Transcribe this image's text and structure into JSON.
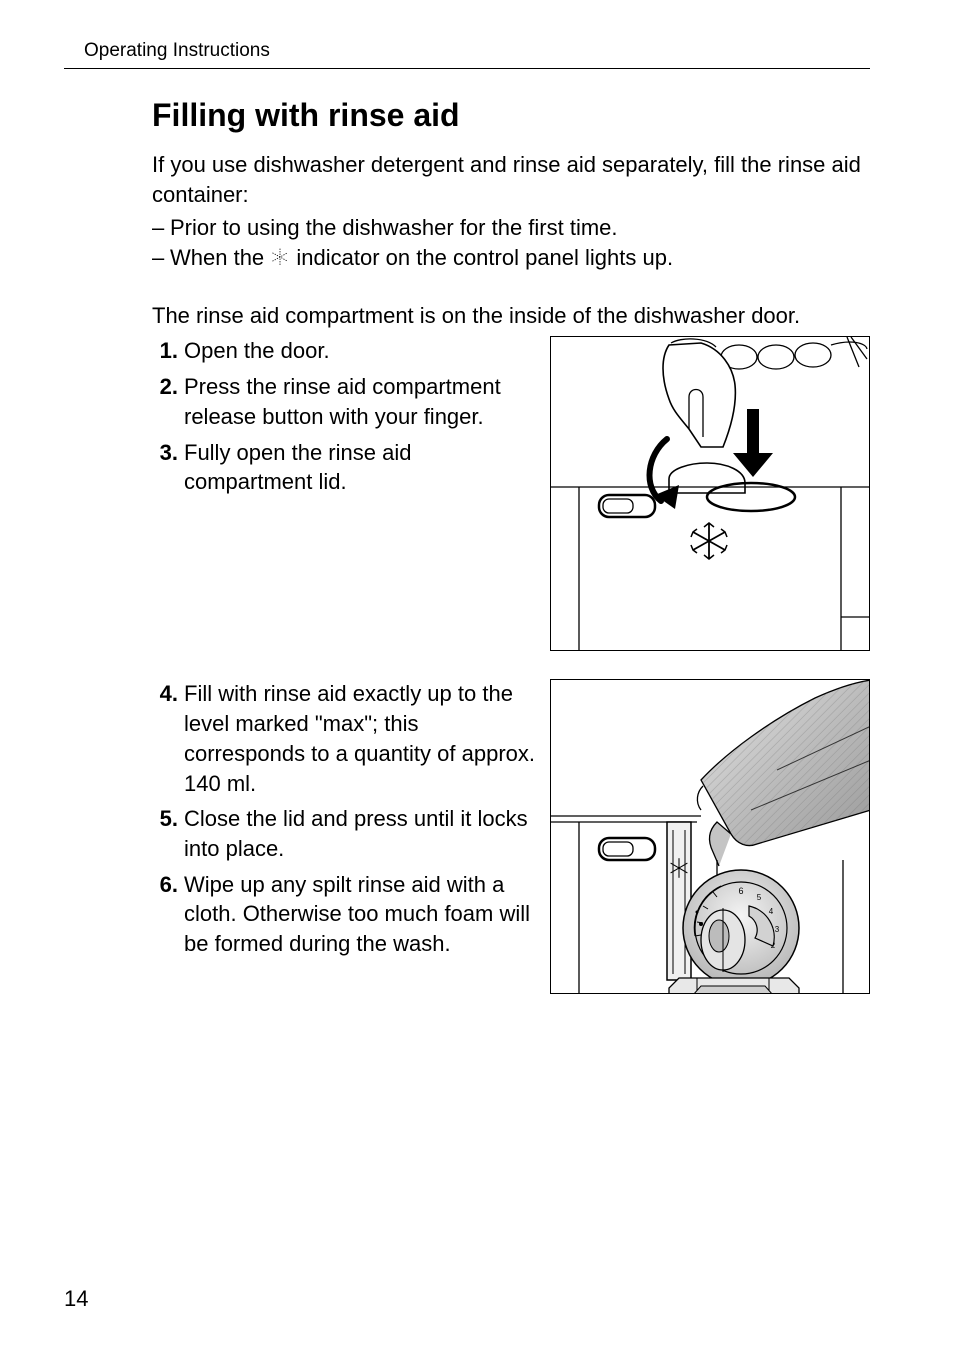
{
  "running_head": "Operating Instructions",
  "section_title": "Filling with rinse aid",
  "intro_text": "If you use dishwasher detergent and rinse aid separately, fill the rinse aid container:",
  "bullets": [
    "Prior to using the dishwasher for the first time.",
    "When the {snow} indicator on the control panel lights up."
  ],
  "sub_intro": "The rinse aid compartment is on the inside of the dishwasher door.",
  "steps_block1": [
    {
      "n": "1.",
      "text": "Open the door."
    },
    {
      "n": "2.",
      "text": "Press the rinse aid compartment release button with your finger."
    },
    {
      "n": "3.",
      "text": "Fully open the rinse aid compartment lid."
    }
  ],
  "steps_block2": [
    {
      "n": "4.",
      "text": "Fill with rinse aid exactly up to the level marked \"max\"; this corresponds to a quantity of approx. 140 ml."
    },
    {
      "n": "5.",
      "text": "Close the lid and press until it locks into place."
    },
    {
      "n": "6.",
      "text": "Wipe up any spilt rinse aid with a cloth. Otherwise too much foam will be formed during the wash."
    }
  ],
  "page_number": "14",
  "colors": {
    "text": "#000000",
    "bg": "#ffffff",
    "illus_stroke": "#000000",
    "illus_fill_grey": "#d8d8d8",
    "arrow_fill": "#000000"
  }
}
